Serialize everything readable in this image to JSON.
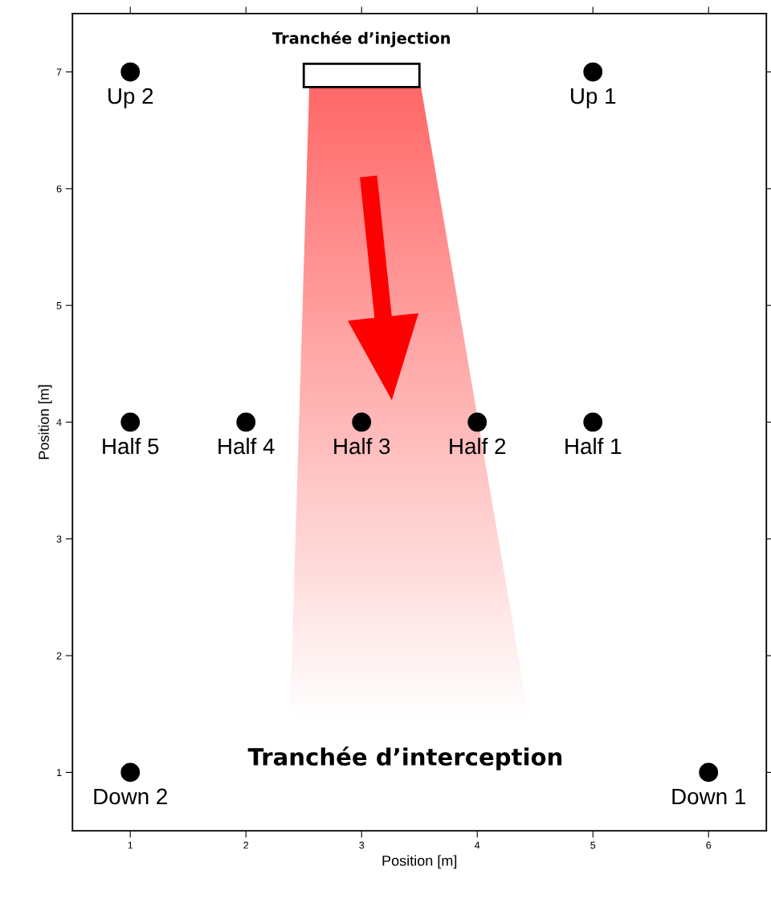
{
  "chart_data": {
    "type": "scatter",
    "xlabel": "Position [m]",
    "ylabel": "Position [m]",
    "x": [
      1,
      5,
      1,
      2,
      3,
      4,
      5,
      1,
      6
    ],
    "values": [
      7,
      7,
      4,
      4,
      4,
      4,
      4,
      1,
      1
    ],
    "value_labels": [
      "Up 2",
      "Up 1",
      "Half 5",
      "Half 4",
      "Half 3",
      "Half 2",
      "Half 1",
      "Down 2",
      "Down 1"
    ],
    "color": "#000000",
    "marker": "circle",
    "grid": false,
    "xlim": [
      0.5,
      6.5
    ],
    "ylim": [
      0.5,
      7.5
    ],
    "xticks": [
      1,
      2,
      3,
      4,
      5,
      6
    ],
    "yticks": [
      1,
      2,
      3,
      4,
      5,
      6,
      7
    ],
    "annotations": [
      "Tranchée d’injection",
      "Tranchée d’interception"
    ]
  }
}
